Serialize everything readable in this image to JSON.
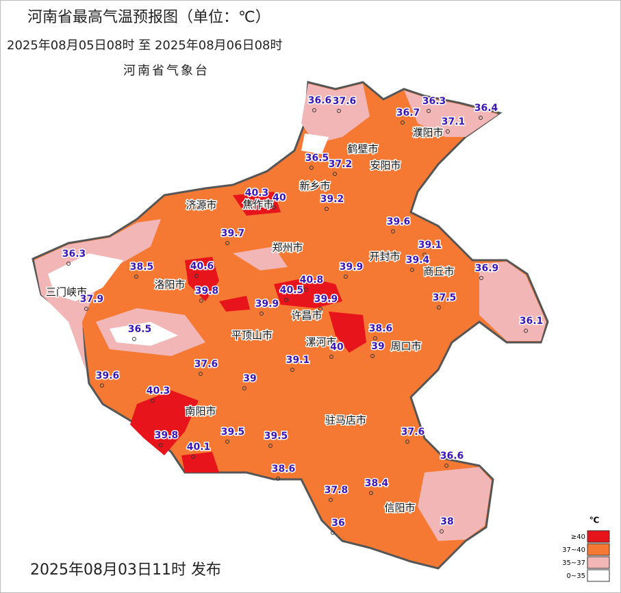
{
  "title": "河南省最高气温预报图（单位：℃）",
  "subtitle": "2025年08月05日08时  至  2025年08月06日08时",
  "agency": "河南省气象台",
  "issue": "2025年08月03日11时 发布",
  "legend": {
    "unit": "℃",
    "items": [
      {
        "label": "≥40",
        "color": "#e8141c"
      },
      {
        "label": "37~40",
        "color": "#f57933"
      },
      {
        "label": "35~37",
        "color": "#f2b6b6"
      },
      {
        "label": "0~35",
        "color": "#ffffff"
      }
    ]
  },
  "cities": [
    "濮阳市",
    "鹤壁市",
    "安阳市",
    "新乡市",
    "济源市",
    "焦作市",
    "郑州市",
    "开封市",
    "商丘市",
    "三门峡市",
    "洛阳市",
    "许昌市",
    "平顶山市",
    "漯河市",
    "周口市",
    "南阳市",
    "驻马店市",
    "信阳市"
  ],
  "stations": [
    36.6,
    37.6,
    36.3,
    36.7,
    36.4,
    37.1,
    36.5,
    37.2,
    40.3,
    40,
    39.2,
    39.6,
    39.7,
    36.3,
    39.1,
    39.4,
    38.5,
    40.6,
    39.9,
    36.9,
    40.8,
    40.5,
    39.8,
    39.9,
    37.9,
    39.9,
    37.5,
    36.1,
    38.6,
    36.5,
    40,
    39,
    37.6,
    39.1,
    39.6,
    39,
    40.3,
    39.8,
    39.5,
    39.5,
    37.6,
    40.1,
    36.6,
    38.6,
    38.4,
    37.8,
    36,
    38
  ]
}
